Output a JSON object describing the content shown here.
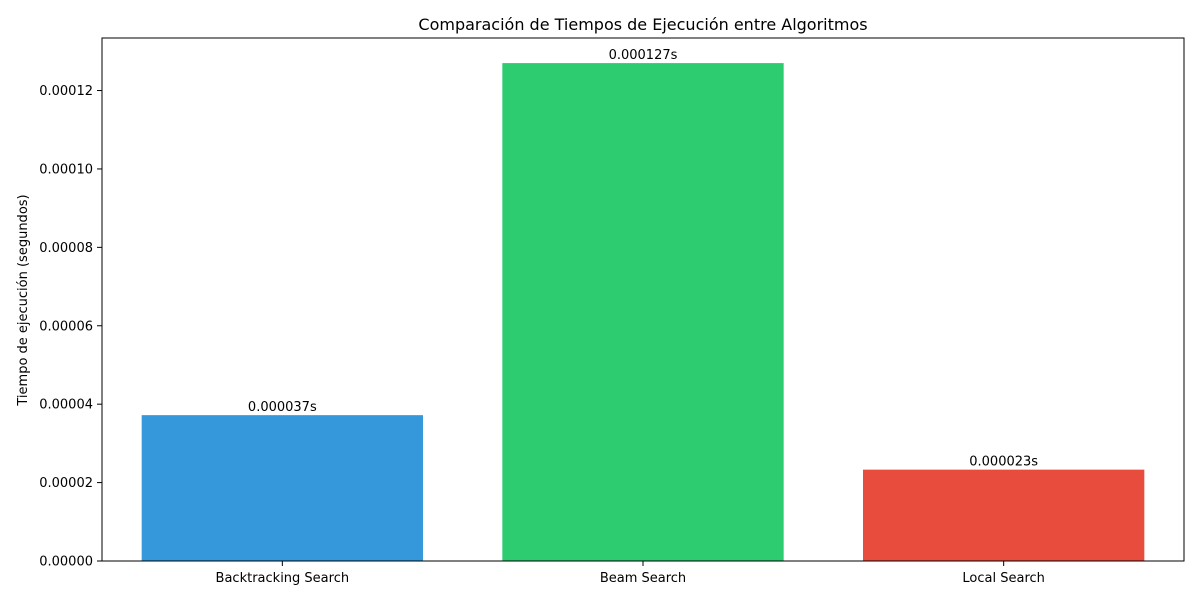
{
  "chart_data": {
    "type": "bar",
    "title": "Comparación de Tiempos de Ejecución entre Algoritmos",
    "xlabel": "",
    "ylabel": "Tiempo de ejecución (segundos)",
    "categories": [
      "Backtracking Search",
      "Beam Search",
      "Local Search"
    ],
    "values": [
      3.72e-05,
      0.000127,
      2.33e-05
    ],
    "data_labels": [
      "0.000037s",
      "0.000127s",
      "0.000023s"
    ],
    "colors": [
      "#3498db",
      "#2ecc71",
      "#e74c3c"
    ],
    "ylim": [
      0,
      0.0001334
    ],
    "yticks": [
      0,
      2e-05,
      4e-05,
      6e-05,
      8e-05,
      0.0001,
      0.00012
    ],
    "ytick_labels": [
      "0.00000",
      "0.00002",
      "0.00004",
      "0.00006",
      "0.00008",
      "0.00010",
      "0.00012"
    ],
    "grid": false,
    "legend": "none"
  }
}
